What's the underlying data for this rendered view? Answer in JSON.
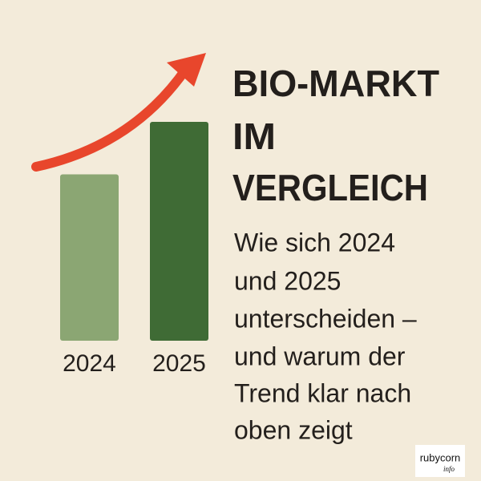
{
  "chart_data": {
    "type": "bar",
    "title": [
      "BIO-MARKT",
      "IM",
      "VERGLEICH"
    ],
    "subtitle": [
      "Wie sich 2024",
      "und 2025",
      "unterscheiden –",
      "und warum der",
      "Trend klar nach",
      "oben zeigt"
    ],
    "categories": [
      "2024",
      "2025"
    ],
    "values": [
      76,
      100
    ],
    "colors": [
      "#8ba673",
      "#3f6b35"
    ]
  },
  "logo": {
    "name": "rubycorn",
    "sub": "info"
  }
}
